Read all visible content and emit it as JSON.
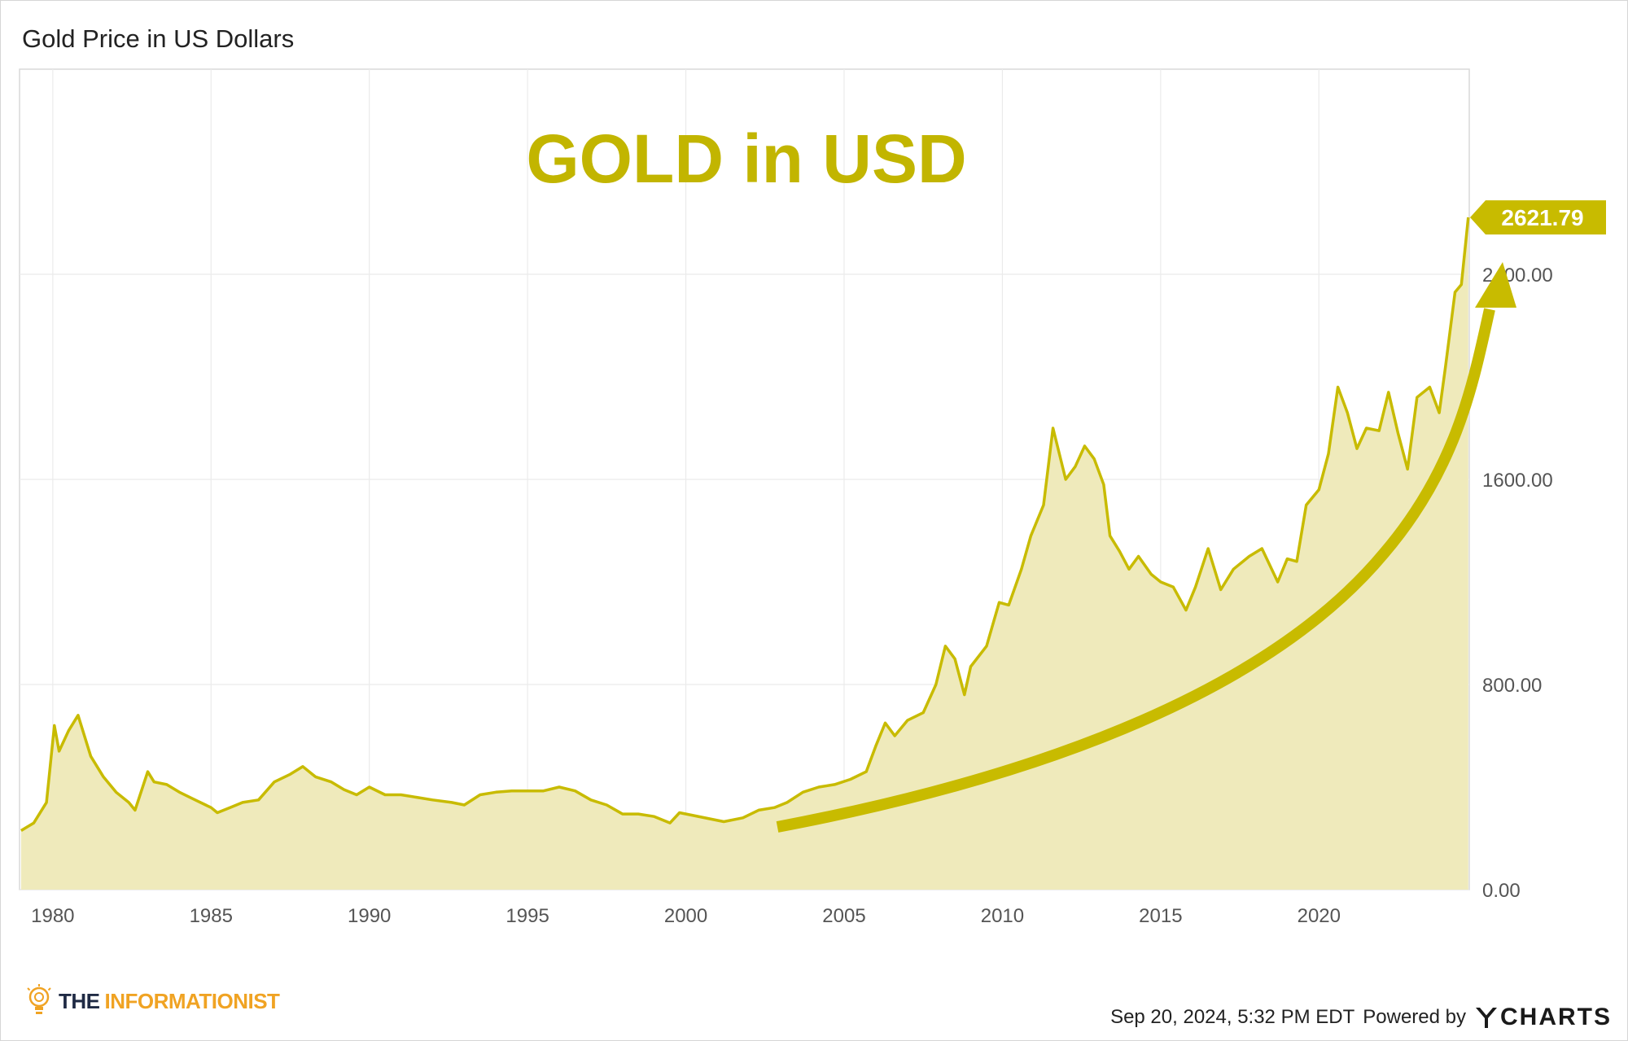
{
  "header": {
    "title": "Gold Price in US Dollars"
  },
  "chart_data": {
    "type": "area",
    "title": "Gold Price in US Dollars",
    "annotation_text": "GOLD in USD",
    "series": [
      {
        "name": "",
        "color": "#c8bb00",
        "fill": "#efeabb",
        "points": [
          [
            1979.0,
            230
          ],
          [
            1979.4,
            260
          ],
          [
            1979.8,
            340
          ],
          [
            1980.05,
            640
          ],
          [
            1980.2,
            540
          ],
          [
            1980.5,
            620
          ],
          [
            1980.8,
            680
          ],
          [
            1981.2,
            520
          ],
          [
            1981.6,
            440
          ],
          [
            1982.0,
            380
          ],
          [
            1982.4,
            340
          ],
          [
            1982.6,
            310
          ],
          [
            1983.0,
            460
          ],
          [
            1983.2,
            420
          ],
          [
            1983.6,
            410
          ],
          [
            1984.0,
            380
          ],
          [
            1984.5,
            350
          ],
          [
            1985.0,
            320
          ],
          [
            1985.2,
            300
          ],
          [
            1985.6,
            320
          ],
          [
            1986.0,
            340
          ],
          [
            1986.5,
            350
          ],
          [
            1987.0,
            420
          ],
          [
            1987.5,
            450
          ],
          [
            1987.9,
            480
          ],
          [
            1988.3,
            440
          ],
          [
            1988.8,
            420
          ],
          [
            1989.2,
            390
          ],
          [
            1989.6,
            370
          ],
          [
            1990.0,
            400
          ],
          [
            1990.5,
            370
          ],
          [
            1991.0,
            370
          ],
          [
            1991.5,
            360
          ],
          [
            1992.0,
            350
          ],
          [
            1992.6,
            340
          ],
          [
            1993.0,
            330
          ],
          [
            1993.5,
            370
          ],
          [
            1994.0,
            380
          ],
          [
            1994.5,
            385
          ],
          [
            1995.0,
            385
          ],
          [
            1995.5,
            385
          ],
          [
            1996.0,
            400
          ],
          [
            1996.5,
            385
          ],
          [
            1997.0,
            350
          ],
          [
            1997.5,
            330
          ],
          [
            1998.0,
            295
          ],
          [
            1998.5,
            295
          ],
          [
            1999.0,
            285
          ],
          [
            1999.5,
            260
          ],
          [
            1999.8,
            300
          ],
          [
            2000.2,
            290
          ],
          [
            2000.8,
            275
          ],
          [
            2001.2,
            265
          ],
          [
            2001.8,
            280
          ],
          [
            2002.3,
            310
          ],
          [
            2002.8,
            320
          ],
          [
            2003.2,
            340
          ],
          [
            2003.7,
            380
          ],
          [
            2004.2,
            400
          ],
          [
            2004.7,
            410
          ],
          [
            2005.2,
            430
          ],
          [
            2005.7,
            460
          ],
          [
            2006.0,
            560
          ],
          [
            2006.3,
            650
          ],
          [
            2006.6,
            600
          ],
          [
            2007.0,
            660
          ],
          [
            2007.5,
            690
          ],
          [
            2007.9,
            800
          ],
          [
            2008.2,
            950
          ],
          [
            2008.5,
            900
          ],
          [
            2008.8,
            760
          ],
          [
            2009.0,
            870
          ],
          [
            2009.5,
            950
          ],
          [
            2009.9,
            1120
          ],
          [
            2010.2,
            1110
          ],
          [
            2010.6,
            1250
          ],
          [
            2010.9,
            1380
          ],
          [
            2011.3,
            1500
          ],
          [
            2011.6,
            1800
          ],
          [
            2011.8,
            1700
          ],
          [
            2012.0,
            1600
          ],
          [
            2012.3,
            1650
          ],
          [
            2012.6,
            1730
          ],
          [
            2012.9,
            1680
          ],
          [
            2013.2,
            1580
          ],
          [
            2013.4,
            1380
          ],
          [
            2013.7,
            1320
          ],
          [
            2014.0,
            1250
          ],
          [
            2014.3,
            1300
          ],
          [
            2014.7,
            1230
          ],
          [
            2015.0,
            1200
          ],
          [
            2015.4,
            1180
          ],
          [
            2015.8,
            1090
          ],
          [
            2016.1,
            1180
          ],
          [
            2016.5,
            1330
          ],
          [
            2016.9,
            1170
          ],
          [
            2017.3,
            1250
          ],
          [
            2017.8,
            1300
          ],
          [
            2018.2,
            1330
          ],
          [
            2018.7,
            1200
          ],
          [
            2019.0,
            1290
          ],
          [
            2019.3,
            1280
          ],
          [
            2019.6,
            1500
          ],
          [
            2020.0,
            1560
          ],
          [
            2020.3,
            1700
          ],
          [
            2020.6,
            1960
          ],
          [
            2020.9,
            1860
          ],
          [
            2021.2,
            1720
          ],
          [
            2021.5,
            1800
          ],
          [
            2021.9,
            1790
          ],
          [
            2022.2,
            1940
          ],
          [
            2022.5,
            1780
          ],
          [
            2022.8,
            1640
          ],
          [
            2023.1,
            1920
          ],
          [
            2023.5,
            1960
          ],
          [
            2023.8,
            1860
          ],
          [
            2024.0,
            2040
          ],
          [
            2024.3,
            2330
          ],
          [
            2024.5,
            2360
          ],
          [
            2024.72,
            2621.79
          ]
        ]
      }
    ],
    "x_ticks": [
      "1980",
      "1985",
      "1990",
      "1995",
      "2000",
      "2005",
      "2010",
      "2015",
      "2020"
    ],
    "y_ticks": [
      "0.00",
      "800.00",
      "1600.00",
      "2400.00"
    ],
    "ylim": [
      0,
      3200
    ],
    "xlim": [
      1978.95,
      2024.75
    ],
    "last_value_label": "2621.79",
    "grid": true,
    "legend": "none",
    "trend_arrow_color": "#c8bb00"
  },
  "footer": {
    "brand_the": "THE",
    "brand_name": "INFORMATIONIST",
    "timestamp": "Sep 20, 2024, 5:32 PM EDT",
    "powered_by": "Powered by",
    "ycharts_wordmark": "CHARTS"
  }
}
